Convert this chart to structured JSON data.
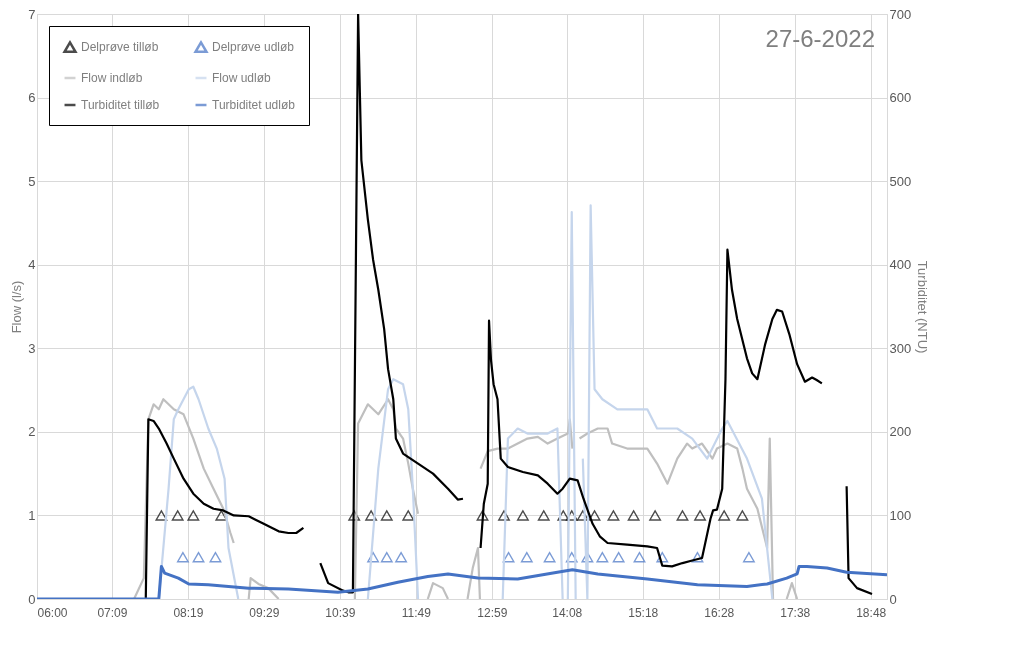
{
  "chart_data": {
    "type": "line",
    "annotations": [
      "27-6-2022"
    ],
    "ylabel": "Flow (l/s)",
    "y2label": "Turbiditet (NTU)",
    "xlim": [
      6,
      19.05
    ],
    "xticks": [
      {
        "value": 6,
        "label": "06:00"
      },
      {
        "value": 7.15,
        "label": "07:09"
      },
      {
        "value": 8.3167,
        "label": "08:19"
      },
      {
        "value": 9.4833,
        "label": "09:29"
      },
      {
        "value": 10.65,
        "label": "10:39"
      },
      {
        "value": 11.8167,
        "label": "11:49"
      },
      {
        "value": 12.9833,
        "label": "12:59"
      },
      {
        "value": 14.1333,
        "label": "14:08"
      },
      {
        "value": 15.3,
        "label": "15:18"
      },
      {
        "value": 16.4667,
        "label": "16:28"
      },
      {
        "value": 17.6333,
        "label": "17:38"
      },
      {
        "value": 18.8,
        "label": "18:48"
      }
    ],
    "ylim": [
      0,
      7
    ],
    "yticks": [
      0,
      1,
      2,
      3,
      4,
      5,
      6,
      7
    ],
    "y2lim": [
      0,
      700
    ],
    "y2ticks": [
      0,
      100,
      200,
      300,
      400,
      500,
      600,
      700
    ],
    "grid": true,
    "legend": "top left",
    "line_style": "solid",
    "series": [
      {
        "name": "Delprøve tilløb",
        "type": "scatter",
        "marker": "triangle",
        "color": "#000000",
        "x": [
          7.91,
          8.16,
          8.4,
          8.83,
          10.87,
          11.13,
          11.37,
          11.7,
          12.84,
          13.17,
          13.46,
          13.78,
          14.08,
          14.21,
          14.38,
          14.56,
          14.85,
          15.16,
          15.49,
          15.91,
          16.18,
          16.55,
          16.83
        ],
        "values": [
          1,
          1,
          1,
          1,
          1,
          1,
          1,
          1,
          1,
          1,
          1,
          1,
          1,
          1,
          1,
          1,
          1,
          1,
          1,
          1,
          1,
          1,
          1
        ]
      },
      {
        "name": "Delprøve udløb",
        "type": "scatter",
        "marker": "triangle",
        "color": "#4472c4",
        "x": [
          8.24,
          8.48,
          8.74,
          11.16,
          11.37,
          11.59,
          13.24,
          13.52,
          13.87,
          14.21,
          14.45,
          14.68,
          14.93,
          15.25,
          15.6,
          16.14,
          16.93
        ],
        "values": [
          0.5,
          0.5,
          0.5,
          0.5,
          0.5,
          0.5,
          0.5,
          0.5,
          0.5,
          0.5,
          0.5,
          0.5,
          0.5,
          0.5,
          0.5,
          0.5,
          0.5
        ]
      },
      {
        "name": "Flow indløb",
        "color": "#bfbfbf",
        "x": [
          7.49,
          7.64,
          7.71,
          7.79,
          7.87,
          7.94,
          8.1,
          8.25,
          8.4,
          8.56,
          8.71,
          8.86,
          8.97,
          9.02,
          9.1,
          9.25,
          9.28,
          9.4,
          9.55,
          9.71,
          9.8,
          10.88,
          10.93,
          11.08,
          11.24,
          11.39,
          11.47,
          11.51,
          11.62,
          11.7,
          11.77,
          11.85,
          11.9,
          12.0,
          12.08,
          12.23,
          12.31,
          12.4,
          12.61,
          12.69,
          12.77,
          12.8,
          12.805,
          12.81,
          12.92,
          13.07,
          13.23,
          13.38,
          13.53,
          13.69,
          13.84,
          13.99,
          14.15,
          14.18,
          14.22,
          14.27,
          14.33,
          14.45,
          14.61,
          14.76,
          14.83,
          15.06,
          15.37,
          15.52,
          15.68,
          15.83,
          15.98,
          16.06,
          16.21,
          16.37,
          16.44,
          16.6,
          16.75,
          16.83,
          16.9,
          17.06,
          17.21,
          17.25,
          17.3,
          17.4,
          17.51,
          17.59,
          17.67
        ],
        "values": [
          0,
          0.25,
          2.15,
          2.33,
          2.27,
          2.39,
          2.27,
          2.21,
          1.92,
          1.56,
          1.32,
          1.08,
          0.79,
          0.67,
          null,
          0,
          0.25,
          0.18,
          0.13,
          0,
          null,
          0,
          2.1,
          2.33,
          2.21,
          2.39,
          2.27,
          2.04,
          1.92,
          1.62,
          1.32,
          1.02,
          null,
          0,
          0.19,
          0.13,
          0,
          null,
          0,
          0.37,
          0.61,
          0,
          null,
          1.56,
          1.77,
          1.8,
          1.8,
          1.86,
          1.92,
          1.94,
          1.86,
          1.92,
          1.98,
          2.15,
          1.8,
          null,
          1.92,
          1.98,
          2.04,
          2.04,
          1.86,
          1.8,
          1.8,
          1.62,
          1.38,
          1.68,
          1.86,
          1.8,
          1.86,
          1.68,
          1.8,
          1.86,
          1.8,
          1.56,
          1.32,
          1.08,
          0.61,
          1.92,
          0,
          null,
          0,
          0.19,
          0
        ]
      },
      {
        "name": "Flow udløb",
        "color": "#c5d5ec",
        "x": [
          7.87,
          8.02,
          8.1,
          8.17,
          8.33,
          8.4,
          8.48,
          8.63,
          8.76,
          8.88,
          8.94,
          9.09,
          9.2,
          11.08,
          11.24,
          11.39,
          11.47,
          11.62,
          11.7,
          11.77,
          11.85,
          11.9,
          13.15,
          13.23,
          13.38,
          13.53,
          13.84,
          13.99,
          14.07,
          14.1,
          14.15,
          14.21,
          14.27,
          14.3,
          14.38,
          14.45,
          14.5,
          14.56,
          14.68,
          14.91,
          15.06,
          15.37,
          15.52,
          15.83,
          16.06,
          16.29,
          16.52,
          16.6,
          16.9,
          17.13,
          17.29
        ],
        "values": [
          0,
          1.32,
          2.15,
          2.27,
          2.51,
          2.54,
          2.39,
          2.04,
          1.8,
          1.44,
          0.61,
          0,
          null,
          0,
          1.56,
          2.51,
          2.63,
          2.57,
          2.27,
          1.32,
          0,
          null,
          0,
          1.92,
          2.04,
          1.98,
          1.98,
          2.04,
          0,
          null,
          0,
          4.63,
          0,
          null,
          1.68,
          0,
          4.71,
          2.51,
          2.39,
          2.27,
          2.27,
          2.27,
          2.04,
          2.04,
          1.92,
          1.68,
          2.04,
          2.13,
          1.68,
          1.2,
          0
        ]
      },
      {
        "name": "Turbiditet tilløb",
        "axis": "y2",
        "color": "#000000",
        "x": [
          7.67,
          7.71,
          7.79,
          7.87,
          7.99,
          8.1,
          8.25,
          8.4,
          8.56,
          8.71,
          8.86,
          9.02,
          9.25,
          9.48,
          9.71,
          9.86,
          9.98,
          10.09,
          10.2,
          10.35,
          10.47,
          10.7,
          10.78,
          10.85,
          10.93,
          10.98,
          11.08,
          11.16,
          11.24,
          11.33,
          11.39,
          11.47,
          11.51,
          11.62,
          11.85,
          12.08,
          12.31,
          12.46,
          12.54,
          12.6,
          12.81,
          12.86,
          12.92,
          12.94,
          12.97,
          13.01,
          13.07,
          13.12,
          13.23,
          13.46,
          13.69,
          13.84,
          13.99,
          14.07,
          14.18,
          14.3,
          14.39,
          14.53,
          14.64,
          14.76,
          15.06,
          15.37,
          15.52,
          15.6,
          15.75,
          15.91,
          16.06,
          16.21,
          16.34,
          16.38,
          16.44,
          16.52,
          16.57,
          16.6,
          16.67,
          16.75,
          16.9,
          16.98,
          17.06,
          17.18,
          17.29,
          17.36,
          17.44,
          17.55,
          17.67,
          17.79,
          17.9,
          17.97,
          18.05,
          18.2,
          18.43,
          18.46,
          18.59,
          18.82
        ],
        "values": [
          0,
          215,
          213,
          204,
          186,
          168,
          144,
          126,
          114,
          108,
          106,
          100,
          99,
          90,
          81,
          79,
          79,
          85,
          null,
          43,
          19,
          10,
          8,
          8,
          700,
          525,
          454,
          406,
          370,
          323,
          275,
          239,
          192,
          174,
          162,
          150,
          132,
          119,
          120,
          null,
          61,
          114,
          138,
          333,
          286,
          257,
          239,
          168,
          158,
          152,
          148,
          138,
          126,
          132,
          144,
          142,
          120,
          90,
          75,
          67,
          65,
          63,
          61,
          40,
          39,
          43,
          46,
          49,
          96,
          106,
          107,
          132,
          263,
          418,
          370,
          335,
          288,
          270,
          263,
          305,
          335,
          346,
          344,
          317,
          281,
          260,
          265,
          262,
          258,
          null,
          135,
          25,
          13,
          6
        ]
      },
      {
        "name": "Turbiditet udløb",
        "axis": "y2",
        "color": "#4472c4",
        "x": [
          6.0,
          7.87,
          7.91,
          7.96,
          8.17,
          8.33,
          8.63,
          9.25,
          9.86,
          10.62,
          11.08,
          11.54,
          12.0,
          12.31,
          12.77,
          13.38,
          13.99,
          14.22,
          14.61,
          15.37,
          16.14,
          16.9,
          17.21,
          17.51,
          17.67,
          17.7,
          17.82,
          18.13,
          18.43,
          19.05
        ],
        "values": [
          0,
          0,
          39,
          31,
          25,
          18,
          17,
          13,
          12,
          8,
          12,
          20,
          27,
          30,
          25,
          24,
          32,
          35,
          30,
          24,
          17,
          15,
          18,
          25,
          30,
          39,
          39,
          37,
          32,
          29
        ]
      }
    ]
  }
}
